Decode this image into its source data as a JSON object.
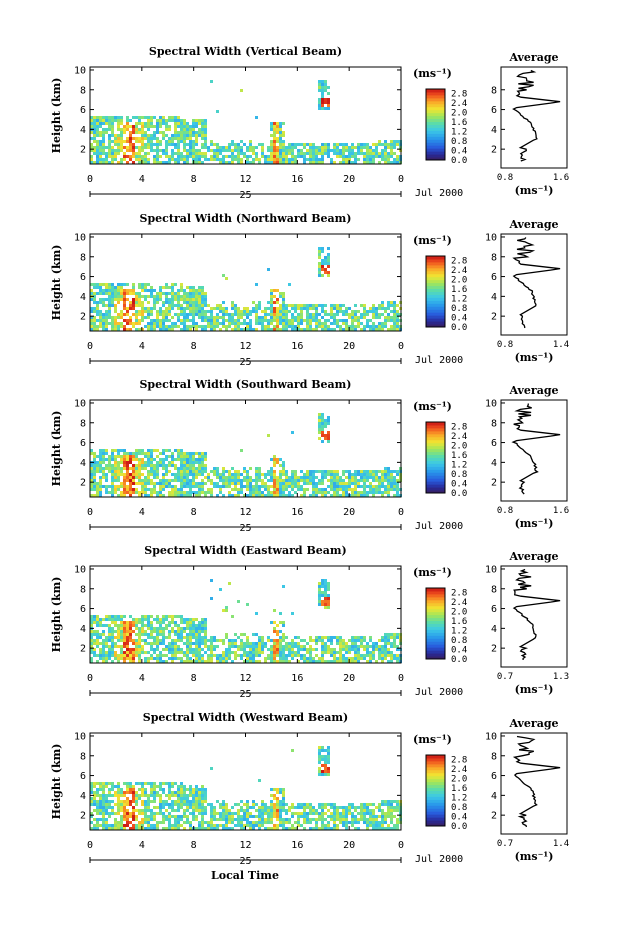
{
  "figure": {
    "xlabel": "Local Time",
    "date_label": "Jul 2000",
    "day_label": "25",
    "unit_label": "(ms⁻¹)",
    "avg_title": "Average",
    "ylabel": "Height (km)"
  },
  "chart_data": [
    {
      "type": "heatmap",
      "title": "Spectral Width (Vertical Beam)",
      "x_ticks": [
        "0",
        "4",
        "8",
        "12",
        "16",
        "20",
        "0"
      ],
      "y_ticks": [
        "2",
        "4",
        "6",
        "8",
        "10"
      ],
      "xlim": [
        0,
        24
      ],
      "ylim": [
        0.5,
        10.3
      ],
      "colorbar_ticks": [
        "0.0",
        "0.4",
        "0.8",
        "1.2",
        "1.6",
        "2.0",
        "2.4",
        "2.8"
      ],
      "colorbar_range": [
        0.0,
        3.0
      ],
      "average": {
        "xlim": [
          0.8,
          1.6
        ],
        "x_ticks": [
          "0.8",
          "1.6"
        ],
        "y_ticks": [
          "2",
          "4",
          "6",
          "8"
        ]
      }
    },
    {
      "type": "heatmap",
      "title": "Spectral Width (Northward Beam)",
      "x_ticks": [
        "0",
        "4",
        "8",
        "12",
        "16",
        "20",
        "0"
      ],
      "y_ticks": [
        "2",
        "4",
        "6",
        "8",
        "10"
      ],
      "xlim": [
        0,
        24
      ],
      "ylim": [
        0.5,
        10.3
      ],
      "colorbar_ticks": [
        "0.0",
        "0.4",
        "0.8",
        "1.2",
        "1.6",
        "2.0",
        "2.4",
        "2.8"
      ],
      "colorbar_range": [
        0.0,
        3.0
      ],
      "average": {
        "xlim": [
          0.8,
          1.4
        ],
        "x_ticks": [
          "0.8",
          "1.4"
        ],
        "y_ticks": [
          "2",
          "4",
          "6",
          "8",
          "10"
        ]
      }
    },
    {
      "type": "heatmap",
      "title": "Spectral Width (Southward Beam)",
      "x_ticks": [
        "0",
        "4",
        "8",
        "12",
        "16",
        "20",
        "0"
      ],
      "y_ticks": [
        "2",
        "4",
        "6",
        "8",
        "10"
      ],
      "xlim": [
        0,
        24
      ],
      "ylim": [
        0.5,
        10.3
      ],
      "colorbar_ticks": [
        "0.0",
        "0.4",
        "0.8",
        "1.2",
        "1.6",
        "2.0",
        "2.4",
        "2.8"
      ],
      "colorbar_range": [
        0.0,
        3.0
      ],
      "average": {
        "xlim": [
          0.8,
          1.6
        ],
        "x_ticks": [
          "0.8",
          "1.6"
        ],
        "y_ticks": [
          "2",
          "4",
          "6",
          "8",
          "10"
        ]
      }
    },
    {
      "type": "heatmap",
      "title": "Spectral Width (Eastward Beam)",
      "x_ticks": [
        "0",
        "4",
        "8",
        "12",
        "16",
        "20",
        "0"
      ],
      "y_ticks": [
        "2",
        "4",
        "6",
        "8",
        "10"
      ],
      "xlim": [
        0,
        24
      ],
      "ylim": [
        0.5,
        10.3
      ],
      "colorbar_ticks": [
        "0.0",
        "0.4",
        "0.8",
        "1.2",
        "1.6",
        "2.0",
        "2.4",
        "2.8"
      ],
      "colorbar_range": [
        0.0,
        3.0
      ],
      "average": {
        "xlim": [
          0.7,
          1.3
        ],
        "x_ticks": [
          "0.7",
          "1.3"
        ],
        "y_ticks": [
          "2",
          "4",
          "6",
          "8",
          "10"
        ]
      }
    },
    {
      "type": "heatmap",
      "title": "Spectral Width (Westward Beam)",
      "x_ticks": [
        "0",
        "4",
        "8",
        "12",
        "16",
        "20",
        "0"
      ],
      "y_ticks": [
        "2",
        "4",
        "6",
        "8",
        "10"
      ],
      "xlim": [
        0,
        24
      ],
      "ylim": [
        0.5,
        10.3
      ],
      "colorbar_ticks": [
        "0.0",
        "0.4",
        "0.8",
        "1.2",
        "1.6",
        "2.0",
        "2.4",
        "2.8"
      ],
      "colorbar_range": [
        0.0,
        3.0
      ],
      "average": {
        "xlim": [
          0.7,
          1.4
        ],
        "x_ticks": [
          "0.7",
          "1.4"
        ],
        "y_ticks": [
          "2",
          "4",
          "6",
          "8",
          "10"
        ]
      }
    }
  ]
}
